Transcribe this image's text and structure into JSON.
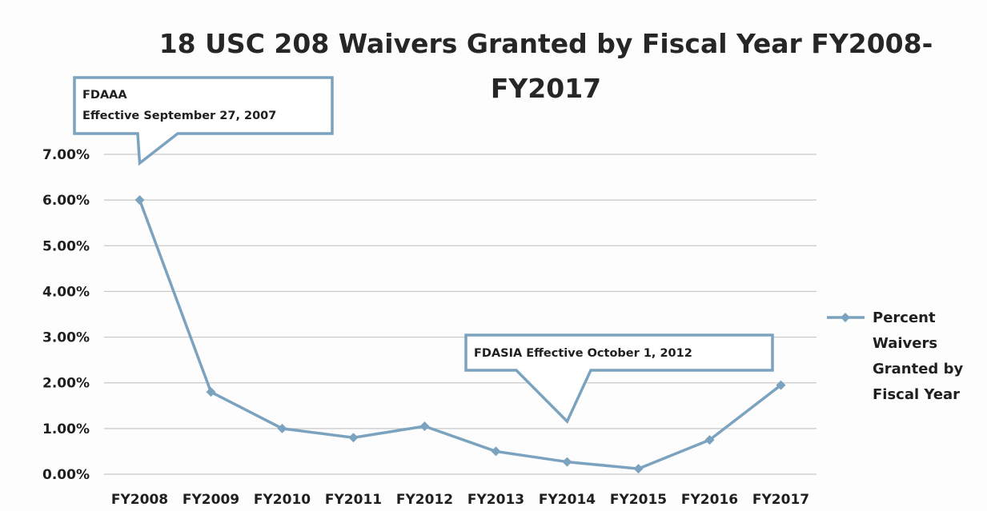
{
  "chart_data": {
    "type": "line",
    "title_lines": [
      "18 USC 208 Waivers Granted by Fiscal Year FY2008-",
      "FY2017"
    ],
    "categories": [
      "FY2008",
      "FY2009",
      "FY2010",
      "FY2011",
      "FY2012",
      "FY2013",
      "FY2014",
      "FY2015",
      "FY2016",
      "FY2017"
    ],
    "series": [
      {
        "name": "Percent Waivers Granted by Fiscal Year",
        "name_lines": [
          "Percent",
          "Waivers",
          "Granted by",
          "Fiscal Year"
        ],
        "values": [
          6.0,
          1.8,
          1.0,
          0.8,
          1.05,
          0.5,
          0.27,
          0.12,
          0.75,
          1.95
        ],
        "color": "#7ba3bf"
      }
    ],
    "ylim": [
      0,
      7
    ],
    "yticks": [
      0,
      1,
      2,
      3,
      4,
      5,
      6,
      7
    ],
    "ytick_labels": [
      "0.00%",
      "1.00%",
      "2.00%",
      "3.00%",
      "4.00%",
      "5.00%",
      "6.00%",
      "7.00%"
    ],
    "grid": true,
    "legend_position": "right",
    "annotations": [
      {
        "lines": [
          "FDAAA",
          "Effective  September 27, 2007"
        ],
        "points_to_category": "FY2008"
      },
      {
        "lines": [
          "FDASIA  Effective October 1, 2012"
        ],
        "points_to_category": "FY2014"
      }
    ],
    "colors": {
      "line": "#7ba3bf",
      "callout_border": "#7ba3bf",
      "grid": "#c8c8c8"
    }
  }
}
